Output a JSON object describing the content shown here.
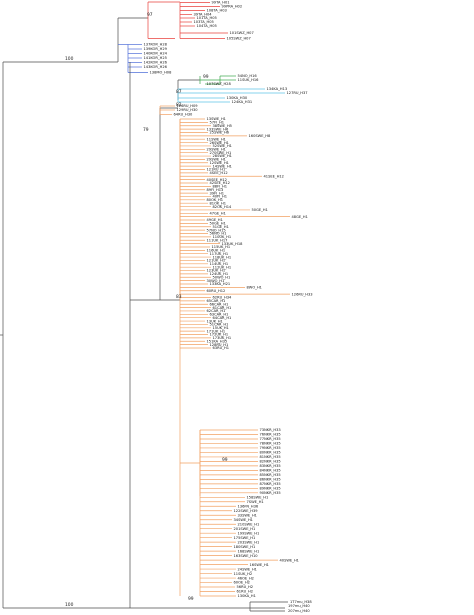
{
  "colors": {
    "backbone": "#4d4d4d",
    "red": "#e8413c",
    "blue": "#4f6fd8",
    "green": "#3aa84a",
    "lightblue": "#5fc4e6",
    "orange": "#f2a062",
    "purple": "#9b63c8"
  },
  "bootstrap": [
    "97",
    "100",
    "99",
    "82",
    "87",
    "79",
    "83",
    "99",
    "100",
    "99"
  ],
  "clades": {
    "red": [
      "99TA_H01",
      "99PRA_H02",
      "108TA_H03",
      "39TA_H04",
      "101TA_H05",
      "103TA_H05",
      "104TA_H05",
      "101SWZ_H07",
      "105SWZ_H07"
    ],
    "blue": [
      "137KOR_H28",
      "139KOR_H29",
      "140KOR_H24",
      "141KOR_H25",
      "142KOR_H26",
      "143KOR_H26",
      "138MO_H08"
    ],
    "green": [
      "54NO_H16",
      "11SUK_H16",
      "107SWZ_H28"
    ],
    "teal": [
      "134KA_H13",
      "127RU_H37",
      "130KA_H30",
      "124KA_H31"
    ],
    "mid_orange": [
      "126RU_H09",
      "129RU_H30",
      "64RU_H30"
    ],
    "big_orange_a": [
      "13SWE_H1",
      "57FI_H1",
      "38SWE_H5",
      "133SWE_H6",
      "25SWE_H6",
      "160SWE_H8",
      "11SWE_H1",
      "26SWE_H1",
      "52SWE_H1",
      "29SWE_H1",
      "270SWE_H1",
      "28SWE_H1",
      "29SWE_H1",
      "12SWE_H1",
      "14SWE_H1",
      "121RU_H1",
      "4SEE_H12",
      "41SEE_H12",
      "40SEE_H12",
      "42SEE_H12",
      "88FI_H1",
      "89FI_H13",
      "39FI_H1",
      "40FI_H1",
      "80OK_H1",
      "81OK_H1",
      "82OK_H14",
      "50GE_H1",
      "47GE_H1",
      "48GE_H1",
      "49GE_H1",
      "50GE_H1",
      "51GE_H1",
      "57NO_H15",
      "56NO_H1",
      "110UK_H1",
      "111UK_H17",
      "133UK_H18",
      "115UK_H1",
      "116UK_H1",
      "117UK_H1",
      "118UK_H1",
      "121UK_H1",
      "114UK_H1",
      "112UK_H1",
      "123UK_H1",
      "124UK_H1",
      "50WO_H1",
      "30WO_H1",
      "133KA_H21",
      "8WO_H1",
      "60RU_H12",
      "126RU_H33",
      "62RU_H34",
      "65CAR_H1",
      "66CAR_H1",
      "61CAR_H1",
      "62CAR_H1",
      "63CAR_H1",
      "64CAR_H1",
      "13UK_H1",
      "51CAR_H1",
      "15UK_H1",
      "171UK_H1",
      "172UK_H1",
      "173UK_H1",
      "151KA_H35",
      "128RU_H1",
      "63RU_H1"
    ],
    "big_orange_b": [
      "73NKR_H33",
      "76NKR_H35",
      "77NKR_H35",
      "78NKR_H35",
      "79NKR_H35",
      "80NKR_H35",
      "81NKR_H35",
      "82NKR_H35",
      "83NKR_H35",
      "84NKR_H35",
      "85NKR_H35",
      "86NKR_H35",
      "87NKR_H35",
      "89NKR_H35",
      "90NKR_H35",
      "158SWE_H1",
      "7SWE_H1",
      "136FN_H36",
      "122SWE_H39",
      "33SWE_H1",
      "34SWE_H1",
      "210SWE_H1",
      "201SWE_H1",
      "199SWE_H1",
      "175SWE_H1",
      "203SWE_H1",
      "180SWE_H1",
      "168SWE_H1",
      "163SWE_H10",
      "40SWE_H1",
      "16SWE_H1",
      "24SWE_H1",
      "11SUK_H2",
      "46OE_H2",
      "60OE_H2",
      "56RU_H2",
      "61RU_H2",
      "130KA_H1"
    ],
    "bottom": [
      "1T7mu_H38",
      "197mu_H40",
      "207mu_H40"
    ]
  }
}
